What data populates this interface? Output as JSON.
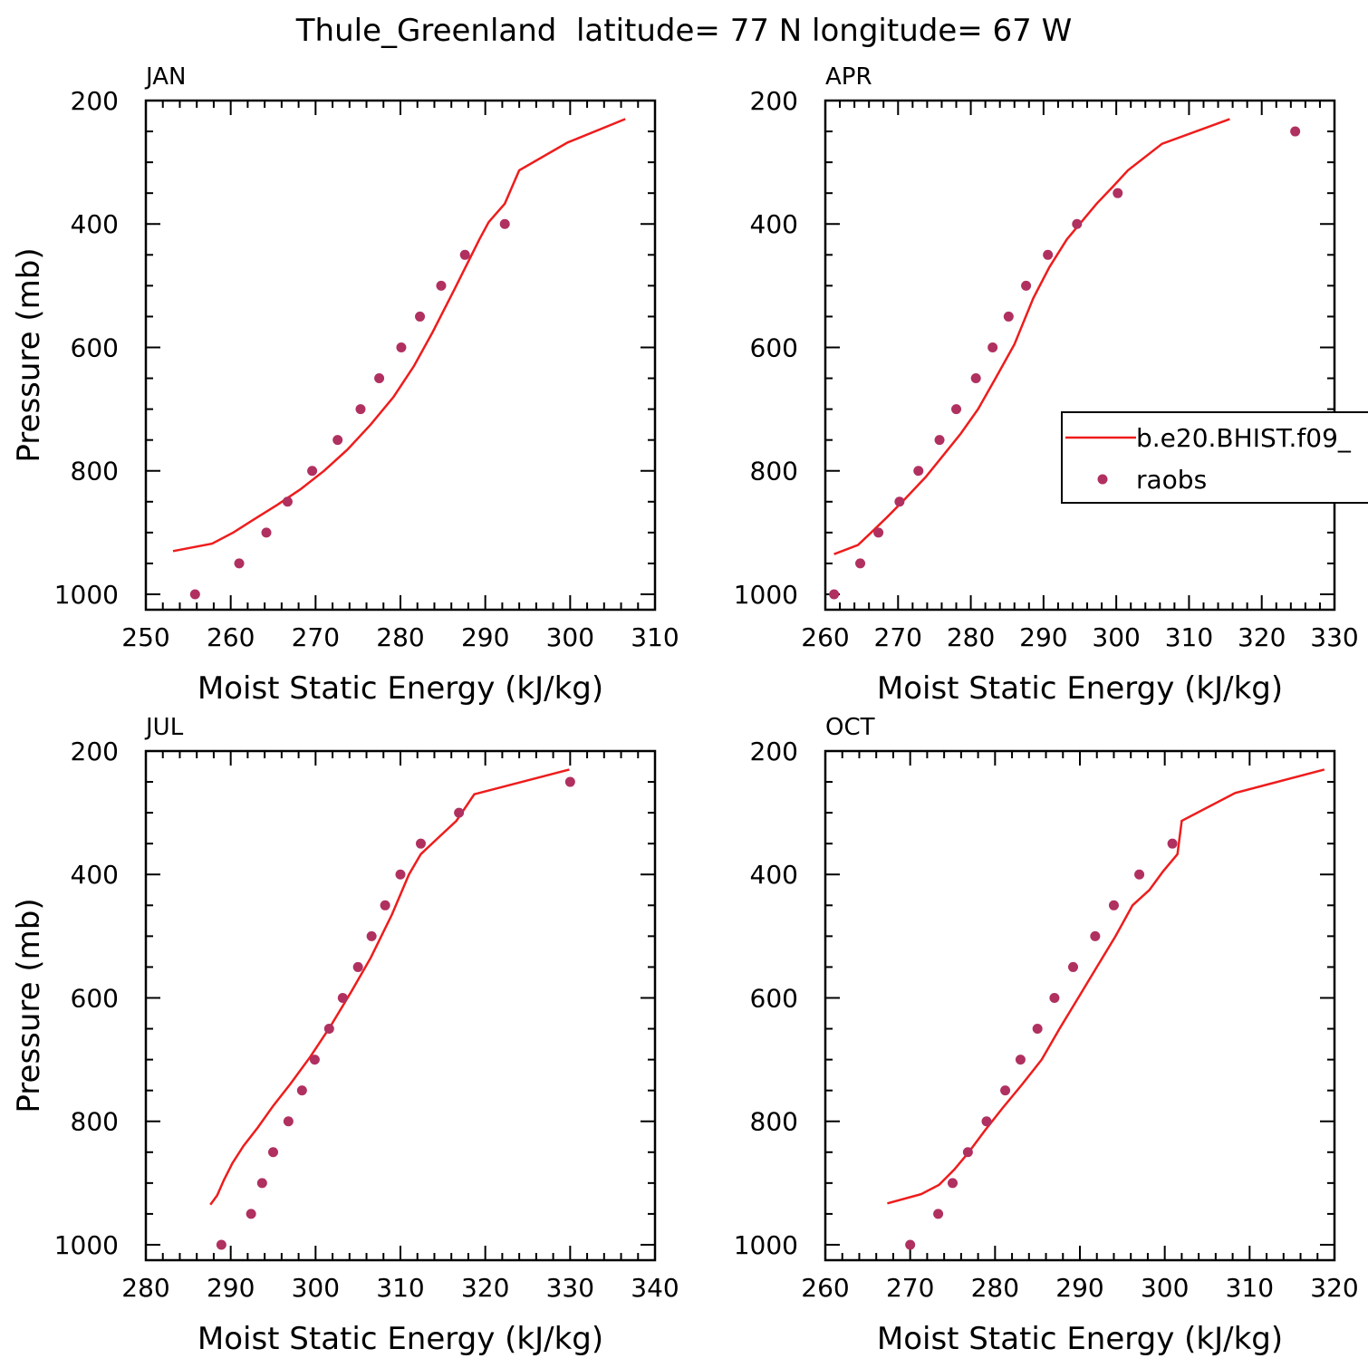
{
  "figure": {
    "title": "Thule_Greenland  latitude= 77 N longitude= 67 W",
    "colors": {
      "model": "#ee1c1c",
      "obs": "#b03060",
      "axis": "#000000"
    }
  },
  "legend": {
    "panel": 1,
    "entries": [
      {
        "label": "b.e20.BHIST.f09_",
        "kind": "line"
      },
      {
        "label": "raobs",
        "kind": "marker"
      }
    ]
  },
  "chart_data": [
    {
      "type": "line",
      "panel_label": "JAN",
      "xlabel": "Moist Static Energy (kJ/kg)",
      "ylabel": "Pressure (mb)",
      "xlim": [
        250,
        310
      ],
      "xticks": [
        250,
        260,
        270,
        280,
        290,
        300,
        310
      ],
      "ylim": [
        1025,
        200
      ],
      "yticks": [
        200,
        400,
        600,
        800,
        1000
      ],
      "series": [
        {
          "kind": "line",
          "points": [
            [
              253.2,
              930
            ],
            [
              257.8,
              918
            ],
            [
              260.3,
              900
            ],
            [
              262.8,
              878
            ],
            [
              265.5,
              855
            ],
            [
              268.2,
              830
            ],
            [
              271.0,
              800
            ],
            [
              273.8,
              765
            ],
            [
              276.5,
              725
            ],
            [
              279.2,
              680
            ],
            [
              281.6,
              630
            ],
            [
              283.8,
              575
            ],
            [
              286.4,
              505
            ],
            [
              289.3,
              425
            ],
            [
              290.4,
              397
            ],
            [
              292.3,
              367
            ],
            [
              294.0,
              313
            ],
            [
              299.7,
              268
            ],
            [
              306.5,
              230
            ]
          ]
        },
        {
          "kind": "scatter",
          "points": [
            [
              255.8,
              1000
            ],
            [
              261.0,
              950
            ],
            [
              264.2,
              900
            ],
            [
              266.7,
              850
            ],
            [
              269.6,
              800
            ],
            [
              272.6,
              750
            ],
            [
              275.3,
              700
            ],
            [
              277.5,
              650
            ],
            [
              280.1,
              600
            ],
            [
              282.3,
              550
            ],
            [
              284.8,
              500
            ],
            [
              287.6,
              450
            ],
            [
              292.3,
              400
            ]
          ]
        }
      ]
    },
    {
      "type": "line",
      "panel_label": "APR",
      "xlabel": "Moist Static Energy (kJ/kg)",
      "ylabel": "",
      "xlim": [
        260,
        330
      ],
      "xticks": [
        260,
        270,
        280,
        290,
        300,
        310,
        320,
        330
      ],
      "ylim": [
        1025,
        200
      ],
      "yticks": [
        200,
        400,
        600,
        800,
        1000
      ],
      "series": [
        {
          "kind": "line",
          "points": [
            [
              261.2,
              935
            ],
            [
              264.5,
              920
            ],
            [
              266.3,
              900
            ],
            [
              268.5,
              875
            ],
            [
              271.0,
              845
            ],
            [
              273.8,
              810
            ],
            [
              276.2,
              775
            ],
            [
              278.6,
              740
            ],
            [
              281.0,
              700
            ],
            [
              283.4,
              650
            ],
            [
              286.0,
              595
            ],
            [
              288.6,
              520
            ],
            [
              290.8,
              470
            ],
            [
              293.2,
              425
            ],
            [
              297.3,
              367
            ],
            [
              299.5,
              340
            ],
            [
              301.6,
              313
            ],
            [
              306.3,
              270
            ],
            [
              315.6,
              230
            ]
          ]
        },
        {
          "kind": "scatter",
          "points": [
            [
              261.2,
              1000
            ],
            [
              264.8,
              950
            ],
            [
              267.3,
              900
            ],
            [
              270.2,
              850
            ],
            [
              272.8,
              800
            ],
            [
              275.7,
              750
            ],
            [
              278.0,
              700
            ],
            [
              280.7,
              650
            ],
            [
              283.0,
              600
            ],
            [
              285.2,
              550
            ],
            [
              287.6,
              500
            ],
            [
              290.6,
              450
            ],
            [
              294.6,
              400
            ],
            [
              300.2,
              350
            ],
            [
              324.6,
              250
            ]
          ]
        }
      ]
    },
    {
      "type": "line",
      "panel_label": "JUL",
      "xlabel": "Moist Static Energy (kJ/kg)",
      "ylabel": "Pressure (mb)",
      "xlim": [
        280,
        340
      ],
      "xticks": [
        280,
        290,
        300,
        310,
        320,
        330,
        340
      ],
      "ylim": [
        1025,
        200
      ],
      "yticks": [
        200,
        400,
        600,
        800,
        1000
      ],
      "series": [
        {
          "kind": "line",
          "points": [
            [
              287.6,
              935
            ],
            [
              288.4,
              920
            ],
            [
              289.2,
              895
            ],
            [
              290.2,
              868
            ],
            [
              291.5,
              840
            ],
            [
              293.2,
              810
            ],
            [
              295.0,
              775
            ],
            [
              297.0,
              740
            ],
            [
              299.4,
              695
            ],
            [
              301.8,
              645
            ],
            [
              304.2,
              590
            ],
            [
              306.5,
              535
            ],
            [
              309.0,
              465
            ],
            [
              311.0,
              400
            ],
            [
              312.4,
              367
            ],
            [
              314.5,
              340
            ],
            [
              316.6,
              313
            ],
            [
              318.7,
              270
            ],
            [
              329.9,
              230
            ]
          ]
        },
        {
          "kind": "scatter",
          "points": [
            [
              288.9,
              1000
            ],
            [
              292.4,
              950
            ],
            [
              293.7,
              900
            ],
            [
              295.0,
              850
            ],
            [
              296.8,
              800
            ],
            [
              298.4,
              750
            ],
            [
              299.9,
              700
            ],
            [
              301.6,
              650
            ],
            [
              303.2,
              600
            ],
            [
              305.0,
              550
            ],
            [
              306.6,
              500
            ],
            [
              308.2,
              450
            ],
            [
              310.0,
              400
            ],
            [
              312.4,
              350
            ],
            [
              316.9,
              300
            ],
            [
              330.0,
              250
            ]
          ]
        }
      ]
    },
    {
      "type": "line",
      "panel_label": "OCT",
      "xlabel": "Moist Static Energy (kJ/kg)",
      "ylabel": "",
      "xlim": [
        260,
        320
      ],
      "xticks": [
        260,
        270,
        280,
        290,
        300,
        310,
        320
      ],
      "ylim": [
        1025,
        200
      ],
      "yticks": [
        200,
        400,
        600,
        800,
        1000
      ],
      "series": [
        {
          "kind": "line",
          "points": [
            [
              267.3,
              933
            ],
            [
              271.3,
              918
            ],
            [
              273.4,
              903
            ],
            [
              275.2,
              878
            ],
            [
              276.9,
              850
            ],
            [
              278.8,
              815
            ],
            [
              280.8,
              780
            ],
            [
              283.2,
              740
            ],
            [
              285.5,
              700
            ],
            [
              287.6,
              650
            ],
            [
              289.8,
              600
            ],
            [
              292.0,
              550
            ],
            [
              294.2,
              500
            ],
            [
              296.2,
              450
            ],
            [
              298.2,
              425
            ],
            [
              299.8,
              395
            ],
            [
              301.5,
              367
            ],
            [
              302.0,
              313
            ],
            [
              308.3,
              268
            ],
            [
              318.8,
              230
            ]
          ]
        },
        {
          "kind": "scatter",
          "points": [
            [
              270.0,
              1000
            ],
            [
              273.3,
              950
            ],
            [
              275.0,
              900
            ],
            [
              276.8,
              850
            ],
            [
              279.0,
              800
            ],
            [
              281.2,
              750
            ],
            [
              283.0,
              700
            ],
            [
              285.0,
              650
            ],
            [
              287.0,
              600
            ],
            [
              289.2,
              550
            ],
            [
              291.8,
              500
            ],
            [
              294.0,
              450
            ],
            [
              297.0,
              400
            ],
            [
              300.9,
              350
            ]
          ]
        }
      ]
    }
  ]
}
